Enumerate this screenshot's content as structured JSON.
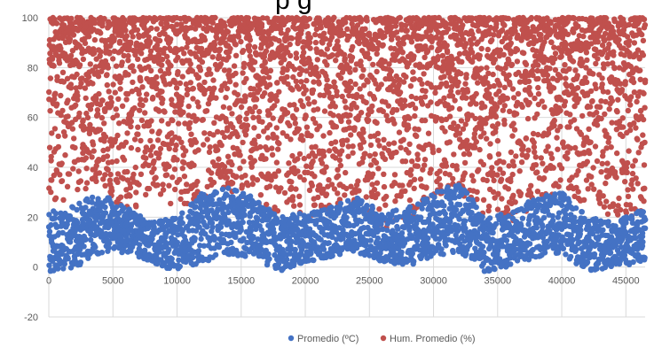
{
  "title_fragment": "p   g",
  "colors": {
    "temperature": "#4472C4",
    "humidity": "#C0504D",
    "gridline": "#D9D9D9",
    "axis_text": "#595959"
  },
  "chart_data": {
    "type": "scatter",
    "title": "",
    "xlabel": "",
    "ylabel": "",
    "xlim": [
      0,
      46500
    ],
    "ylim": [
      -20,
      100
    ],
    "x_ticks": [
      0,
      5000,
      10000,
      15000,
      20000,
      25000,
      30000,
      35000,
      40000,
      45000
    ],
    "y_ticks": [
      -20,
      0,
      20,
      40,
      60,
      80,
      100
    ],
    "grid": "vertical and horizontal gridlines",
    "legend": "bottom-center",
    "series": [
      {
        "name": "Promedio (ºC)",
        "color": "#4472C4",
        "x": [
          0,
          2000,
          4000,
          6000,
          8000,
          10000,
          12000,
          14000,
          16000,
          18000,
          20000,
          22000,
          24000,
          26000,
          28000,
          30000,
          32000,
          34000,
          36000,
          38000,
          40000,
          42000,
          44000,
          46500
        ],
        "min": [
          -2,
          0,
          5,
          6,
          2,
          -2,
          2,
          5,
          4,
          -2,
          2,
          4,
          6,
          2,
          0,
          3,
          6,
          -2,
          0,
          4,
          5,
          -2,
          0,
          2
        ],
        "max": [
          22,
          25,
          30,
          24,
          18,
          20,
          30,
          32,
          28,
          20,
          22,
          24,
          28,
          22,
          24,
          30,
          34,
          20,
          22,
          28,
          30,
          20,
          18,
          24
        ]
      },
      {
        "name": "Hum. Promedio (%)",
        "color": "#C0504D",
        "x": [
          0,
          2000,
          4000,
          6000,
          8000,
          10000,
          12000,
          14000,
          16000,
          18000,
          20000,
          22000,
          24000,
          26000,
          28000,
          30000,
          32000,
          34000,
          36000,
          38000,
          40000,
          42000,
          44000,
          46500
        ],
        "min": [
          25,
          28,
          35,
          20,
          30,
          22,
          26,
          30,
          25,
          20,
          18,
          22,
          25,
          15,
          18,
          28,
          30,
          20,
          18,
          25,
          30,
          25,
          20,
          15
        ],
        "max": [
          100,
          100,
          100,
          100,
          100,
          100,
          100,
          100,
          100,
          100,
          100,
          100,
          100,
          100,
          100,
          100,
          100,
          100,
          100,
          100,
          100,
          100,
          100,
          100
        ]
      }
    ]
  }
}
